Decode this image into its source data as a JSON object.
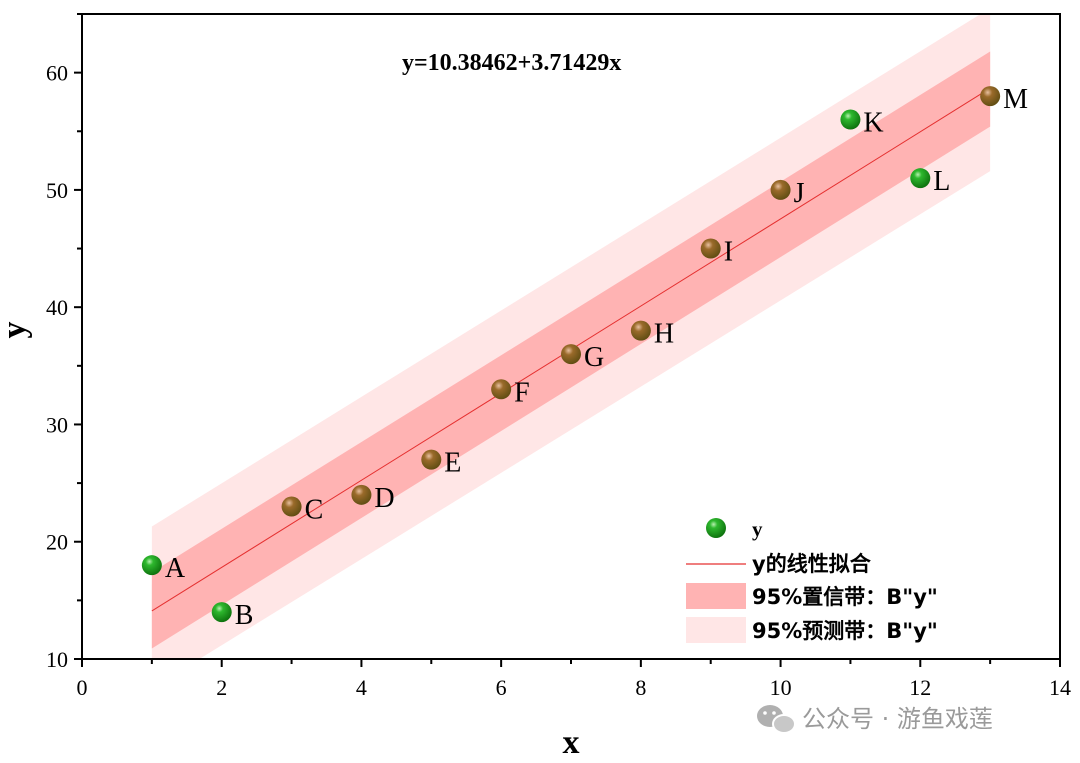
{
  "chart_data": {
    "type": "scatter",
    "equation": "y=10.38462+3.71429x",
    "xlabel": "x",
    "ylabel": "y",
    "xlim": [
      0,
      14
    ],
    "ylim": [
      10,
      65
    ],
    "xticks": [
      "0",
      "2",
      "4",
      "6",
      "8",
      "10",
      "12",
      "14"
    ],
    "yticks": [
      "10",
      "20",
      "30",
      "40",
      "50",
      "60"
    ],
    "fit": {
      "intercept": 10.38462,
      "slope": 3.71429,
      "x_range": [
        1,
        13
      ]
    },
    "confidence_band": {
      "low": [
        10.9,
        55.4
      ],
      "high": [
        17.4,
        61.8
      ]
    },
    "prediction_band": {
      "low": [
        7.5,
        51.6
      ],
      "high": [
        21.3,
        65.5
      ]
    },
    "points": [
      {
        "label": "A",
        "x": 1,
        "y": 18
      },
      {
        "label": "B",
        "x": 2,
        "y": 14
      },
      {
        "label": "C",
        "x": 3,
        "y": 23
      },
      {
        "label": "D",
        "x": 4,
        "y": 24
      },
      {
        "label": "E",
        "x": 5,
        "y": 27
      },
      {
        "label": "F",
        "x": 6,
        "y": 33
      },
      {
        "label": "G",
        "x": 7,
        "y": 36
      },
      {
        "label": "H",
        "x": 8,
        "y": 38
      },
      {
        "label": "I",
        "x": 9,
        "y": 45
      },
      {
        "label": "J",
        "x": 10,
        "y": 50
      },
      {
        "label": "K",
        "x": 11,
        "y": 56
      },
      {
        "label": "L",
        "x": 12,
        "y": 51
      },
      {
        "label": "M",
        "x": 13,
        "y": 58
      }
    ],
    "legend": {
      "placement": "bottom-right",
      "entries": [
        "y",
        "y的线性拟合",
        "95%置信带：B\"y\"",
        "95%预测带：B\"y\""
      ]
    },
    "colors": {
      "point": "#109010",
      "fit_line": "#e53030",
      "confidence_band": "#ffb3b3",
      "prediction_band": "#ffe6e6"
    },
    "grid": false
  },
  "watermark": "公众号 · 游鱼戏莲"
}
